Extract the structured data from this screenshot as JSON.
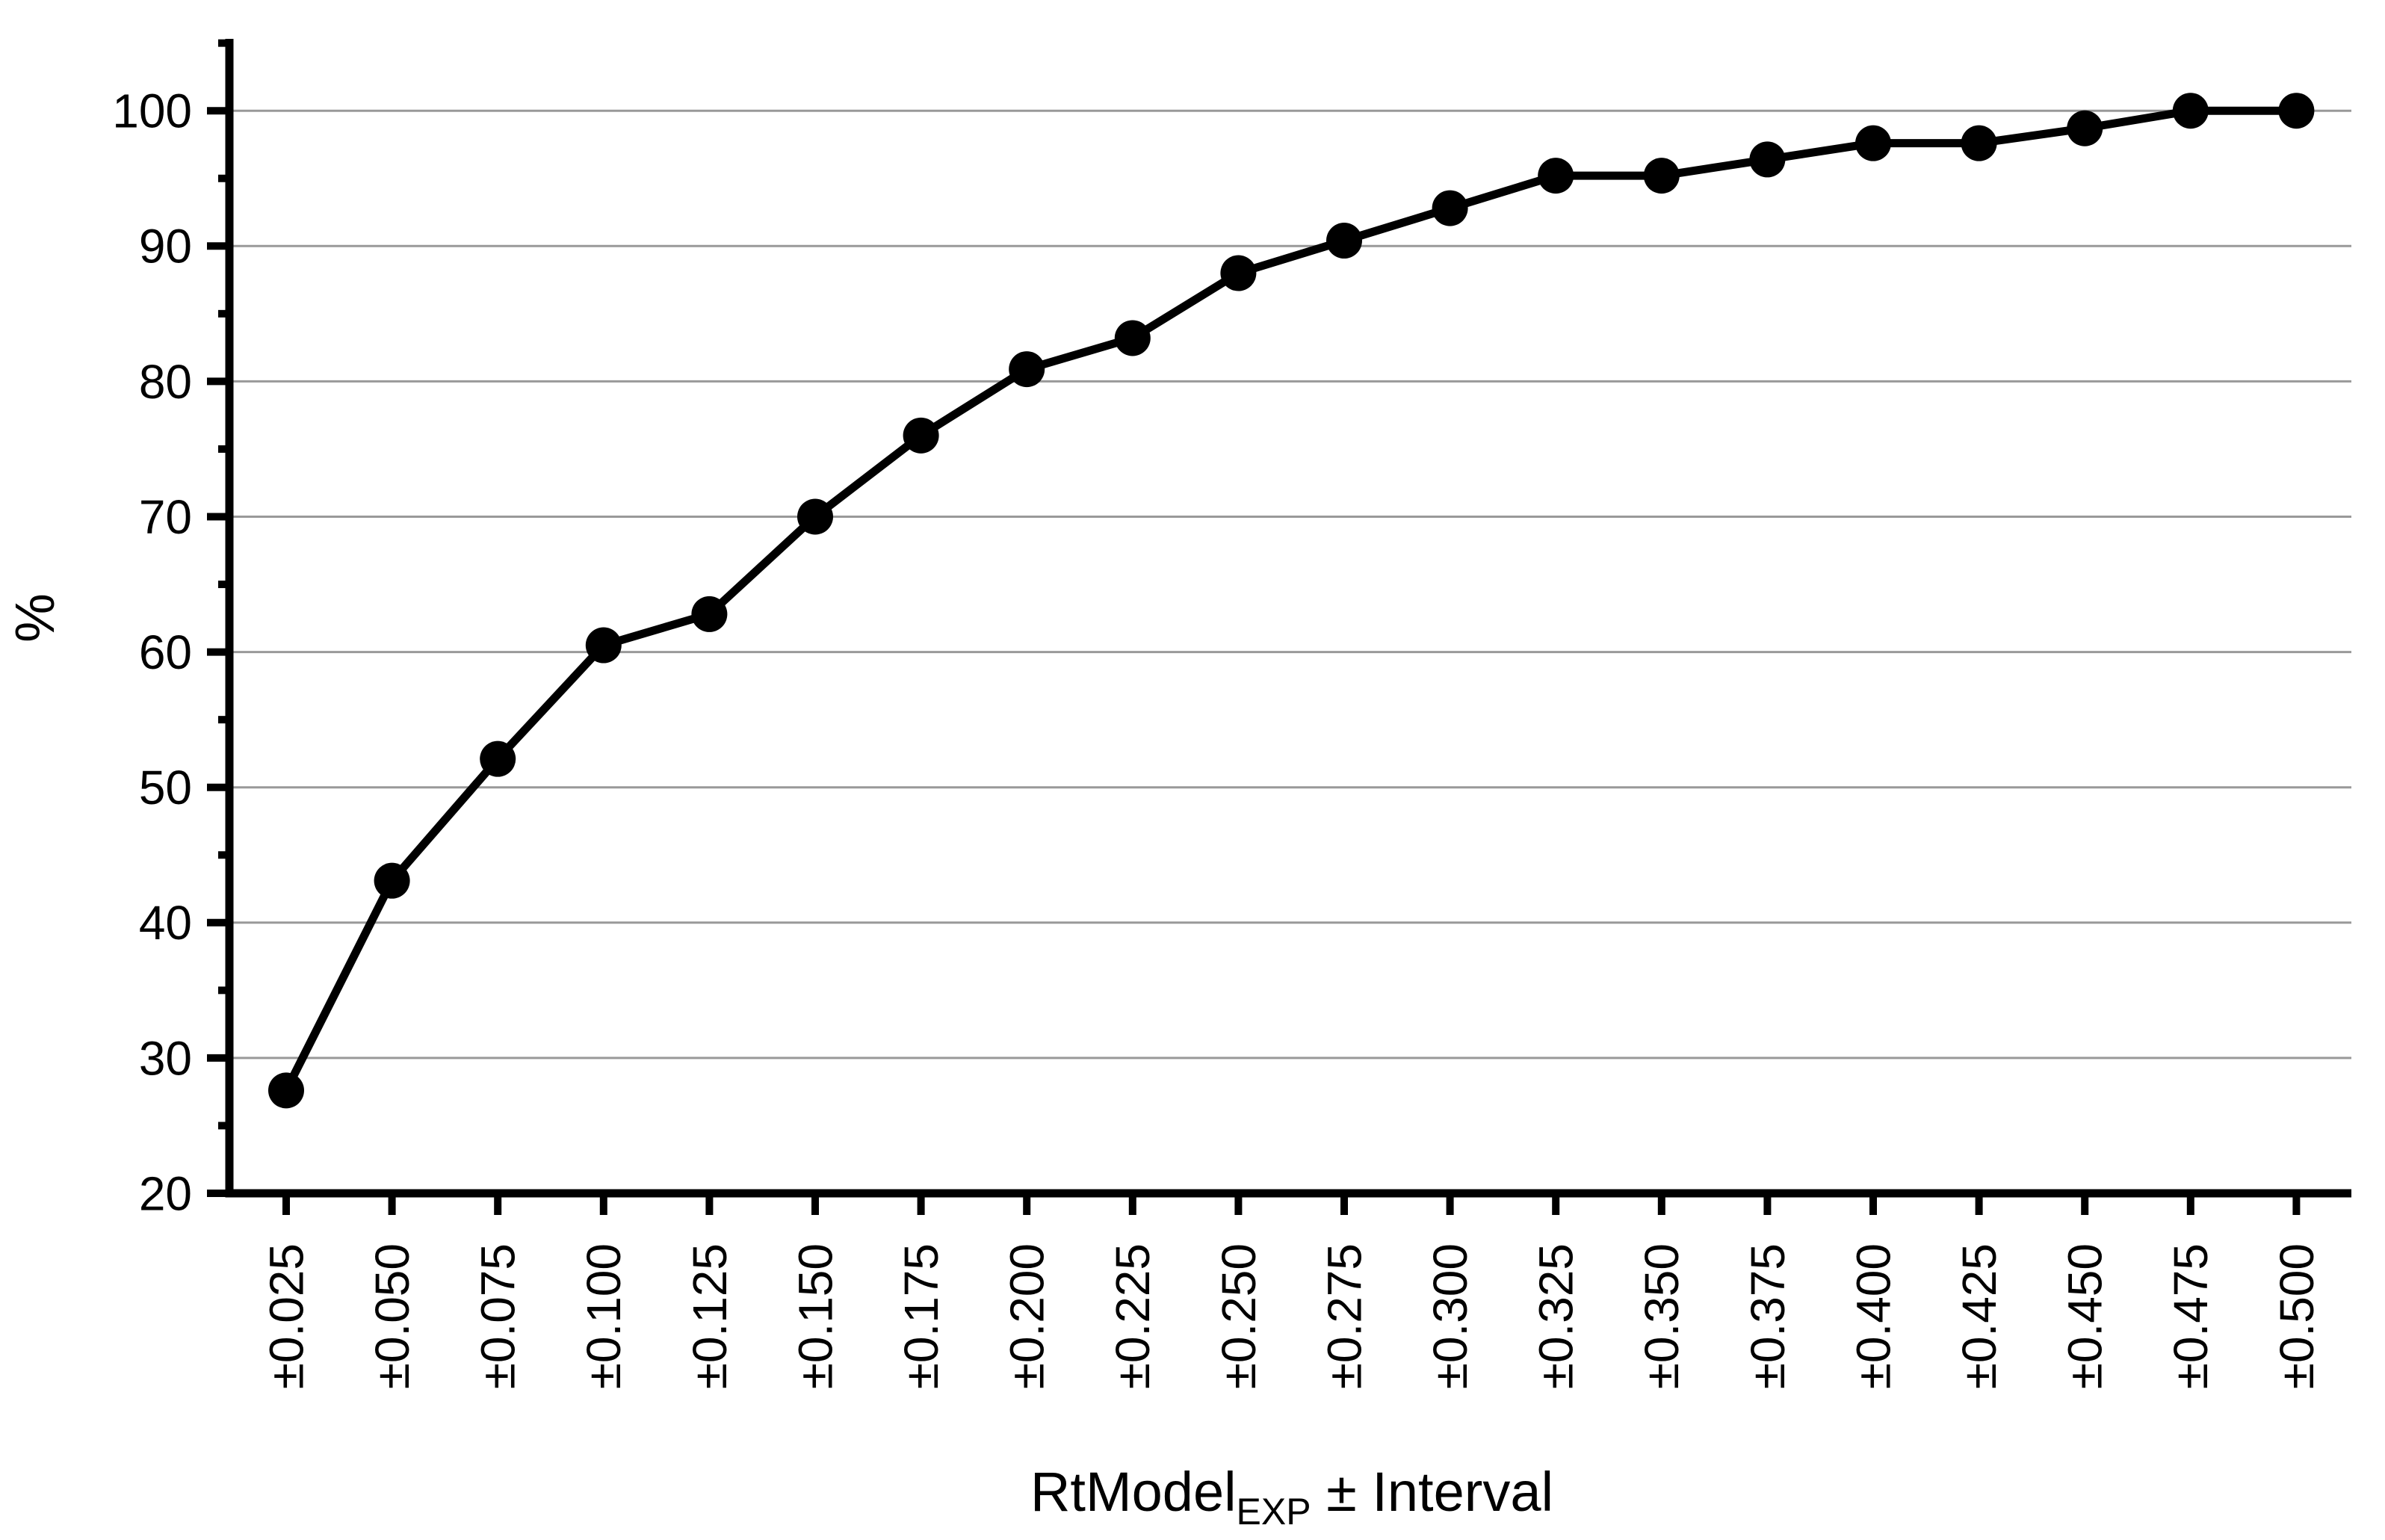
{
  "chart_data": {
    "type": "line",
    "title": "",
    "ylabel": "%",
    "xlabel_main": "RtModel",
    "xlabel_sub": "EXP",
    "xlabel_rest": " ± Interval",
    "categories": [
      "±0.025",
      "±0.050",
      "±0.075",
      "±0.100",
      "±0.125",
      "±0.150",
      "±0.175",
      "±0.200",
      "±0.225",
      "±0.250",
      "±0.275",
      "±0.300",
      "±0.325",
      "±0.350",
      "±0.375",
      "±0.400",
      "±0.425",
      "±0.450",
      "±0.475",
      "±0.500"
    ],
    "values": [
      27.6,
      43.1,
      52.1,
      60.5,
      62.8,
      70.0,
      76.0,
      80.9,
      83.2,
      88.0,
      90.4,
      92.8,
      95.2,
      95.2,
      96.4,
      97.6,
      97.6,
      98.7,
      100.0,
      100.0
    ],
    "ylim": [
      20,
      105
    ],
    "yticks": [
      20,
      30,
      40,
      50,
      60,
      70,
      80,
      90,
      100
    ],
    "yminorticks": [
      25,
      35,
      45,
      55,
      65,
      75,
      85,
      95,
      105
    ],
    "grid": true,
    "legend": "none",
    "marker": "filled-circle",
    "colors": {
      "line": "#000000",
      "marker": "#000000",
      "grid": "#999999",
      "axis": "#000000",
      "text": "#000000",
      "background": "#ffffff"
    }
  }
}
